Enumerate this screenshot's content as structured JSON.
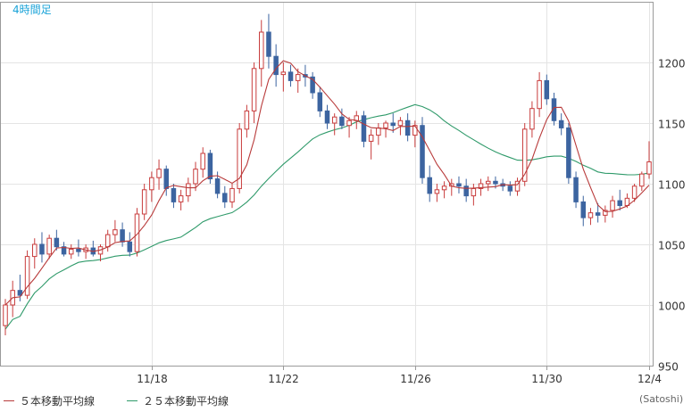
{
  "chart_data": {
    "type": "candlestick",
    "title": "4時間足",
    "unit_label": "(Satoshi)",
    "ylim": [
      950,
      1250
    ],
    "y_ticks": [
      950,
      1000,
      1050,
      1100,
      1150,
      1200
    ],
    "x_ticks": [
      "11/18",
      "11/22",
      "11/26",
      "11/30",
      "12/4"
    ],
    "grid": true,
    "colors": {
      "up": "#c83c3c",
      "down": "#3c64a0",
      "ma5": "#b83a3a",
      "ma25": "#2f9a6a",
      "grid": "#e4e4e4",
      "axis": "#9a9a9a",
      "title": "#1aa3d8"
    },
    "series": [
      {
        "name": "５本移動平均線",
        "color": "#b83a3a"
      },
      {
        "name": "２５本移動平均線",
        "color": "#2f9a6a"
      }
    ],
    "candles_ohlc": [
      [
        983,
        1005,
        975,
        1000
      ],
      [
        1000,
        1020,
        990,
        1012
      ],
      [
        1012,
        1025,
        1003,
        1008
      ],
      [
        1008,
        1045,
        1005,
        1040
      ],
      [
        1040,
        1055,
        1030,
        1050
      ],
      [
        1050,
        1060,
        1035,
        1042
      ],
      [
        1042,
        1058,
        1038,
        1055
      ],
      [
        1055,
        1062,
        1045,
        1048
      ],
      [
        1048,
        1052,
        1040,
        1042
      ],
      [
        1042,
        1050,
        1038,
        1046
      ],
      [
        1046,
        1054,
        1040,
        1044
      ],
      [
        1044,
        1050,
        1038,
        1047
      ],
      [
        1047,
        1053,
        1040,
        1042
      ],
      [
        1042,
        1050,
        1036,
        1048
      ],
      [
        1048,
        1062,
        1044,
        1058
      ],
      [
        1058,
        1070,
        1052,
        1062
      ],
      [
        1062,
        1068,
        1048,
        1052
      ],
      [
        1052,
        1060,
        1040,
        1044
      ],
      [
        1044,
        1080,
        1040,
        1075
      ],
      [
        1075,
        1100,
        1070,
        1095
      ],
      [
        1095,
        1110,
        1085,
        1105
      ],
      [
        1105,
        1120,
        1095,
        1112
      ],
      [
        1112,
        1115,
        1090,
        1096
      ],
      [
        1096,
        1100,
        1080,
        1085
      ],
      [
        1085,
        1095,
        1078,
        1090
      ],
      [
        1090,
        1105,
        1085,
        1100
      ],
      [
        1100,
        1118,
        1094,
        1112
      ],
      [
        1112,
        1130,
        1105,
        1125
      ],
      [
        1125,
        1128,
        1100,
        1104
      ],
      [
        1104,
        1110,
        1088,
        1092
      ],
      [
        1092,
        1098,
        1080,
        1085
      ],
      [
        1085,
        1100,
        1080,
        1096
      ],
      [
        1096,
        1150,
        1092,
        1145
      ],
      [
        1145,
        1165,
        1138,
        1160
      ],
      [
        1160,
        1200,
        1150,
        1195
      ],
      [
        1195,
        1235,
        1180,
        1225
      ],
      [
        1225,
        1240,
        1195,
        1205
      ],
      [
        1205,
        1215,
        1180,
        1190
      ],
      [
        1190,
        1200,
        1176,
        1192
      ],
      [
        1192,
        1198,
        1180,
        1185
      ],
      [
        1185,
        1195,
        1175,
        1190
      ],
      [
        1190,
        1198,
        1180,
        1188
      ],
      [
        1188,
        1192,
        1170,
        1175
      ],
      [
        1175,
        1180,
        1155,
        1160
      ],
      [
        1160,
        1165,
        1145,
        1150
      ],
      [
        1150,
        1158,
        1140,
        1155
      ],
      [
        1155,
        1162,
        1145,
        1148
      ],
      [
        1148,
        1155,
        1138,
        1152
      ],
      [
        1152,
        1160,
        1145,
        1156
      ],
      [
        1156,
        1160,
        1130,
        1135
      ],
      [
        1135,
        1145,
        1120,
        1140
      ],
      [
        1140,
        1150,
        1132,
        1146
      ],
      [
        1146,
        1152,
        1138,
        1150
      ],
      [
        1150,
        1158,
        1142,
        1148
      ],
      [
        1148,
        1155,
        1140,
        1152
      ],
      [
        1152,
        1158,
        1135,
        1140
      ],
      [
        1140,
        1152,
        1130,
        1148
      ],
      [
        1148,
        1155,
        1100,
        1105
      ],
      [
        1105,
        1115,
        1085,
        1092
      ],
      [
        1092,
        1100,
        1085,
        1095
      ],
      [
        1095,
        1102,
        1088,
        1098
      ],
      [
        1098,
        1104,
        1090,
        1100
      ],
      [
        1100,
        1106,
        1092,
        1098
      ],
      [
        1098,
        1104,
        1085,
        1090
      ],
      [
        1090,
        1100,
        1082,
        1096
      ],
      [
        1096,
        1104,
        1090,
        1100
      ],
      [
        1100,
        1106,
        1094,
        1102
      ],
      [
        1102,
        1106,
        1096,
        1100
      ],
      [
        1100,
        1104,
        1094,
        1098
      ],
      [
        1098,
        1102,
        1090,
        1094
      ],
      [
        1094,
        1105,
        1090,
        1102
      ],
      [
        1102,
        1150,
        1098,
        1145
      ],
      [
        1145,
        1168,
        1138,
        1162
      ],
      [
        1162,
        1192,
        1155,
        1185
      ],
      [
        1185,
        1190,
        1165,
        1170
      ],
      [
        1170,
        1175,
        1148,
        1152
      ],
      [
        1152,
        1158,
        1140,
        1146
      ],
      [
        1146,
        1150,
        1100,
        1105
      ],
      [
        1105,
        1110,
        1080,
        1085
      ],
      [
        1085,
        1090,
        1065,
        1072
      ],
      [
        1072,
        1080,
        1066,
        1076
      ],
      [
        1076,
        1084,
        1068,
        1074
      ],
      [
        1074,
        1082,
        1068,
        1078
      ],
      [
        1078,
        1090,
        1072,
        1086
      ],
      [
        1086,
        1095,
        1078,
        1082
      ],
      [
        1082,
        1092,
        1080,
        1088
      ],
      [
        1088,
        1100,
        1085,
        1098
      ],
      [
        1098,
        1110,
        1094,
        1108
      ],
      [
        1108,
        1135,
        1104,
        1118
      ]
    ]
  },
  "legend": {
    "ma5_label": "５本移動平均線",
    "ma25_label": "２５本移動平均線"
  }
}
